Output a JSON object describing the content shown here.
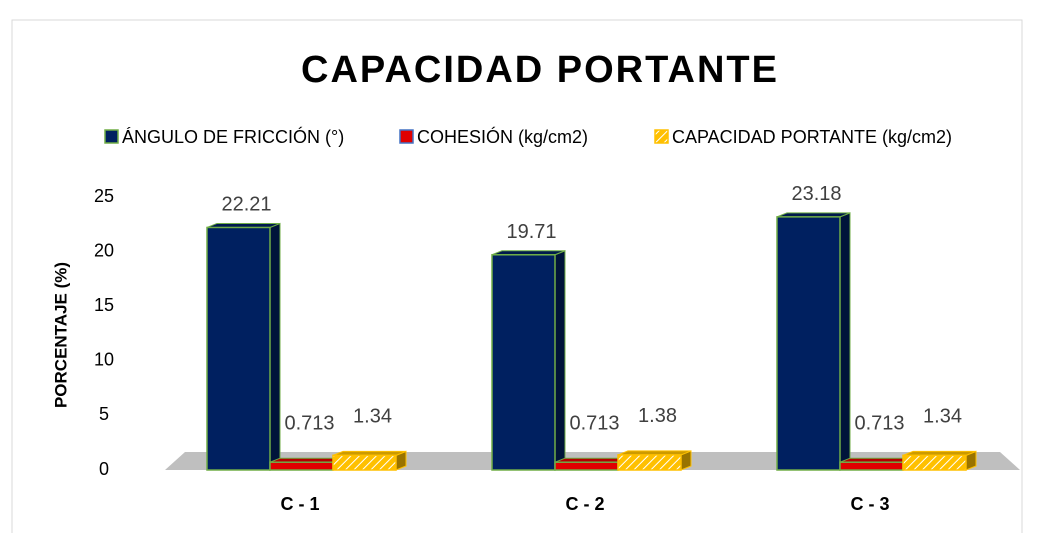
{
  "chart_data": {
    "type": "bar3d",
    "title": "CAPACIDAD PORTANTE",
    "ylabel": "PORCENTAJE (%)",
    "categories": [
      "C - 1",
      "C - 2",
      "C - 3"
    ],
    "series": [
      {
        "name": "ÁNGULO DE FRICCIÓN (°)",
        "color": "#002060",
        "values": [
          22.21,
          19.71,
          23.18
        ]
      },
      {
        "name": "COHESIÓN (kg/cm2)",
        "color": "#e00000",
        "values": [
          0.713,
          0.713,
          0.713
        ]
      },
      {
        "name": "CAPACIDAD PORTANTE (kg/cm2)",
        "color": "#ffc000",
        "hatch": true,
        "values": [
          1.34,
          1.38,
          1.34
        ]
      }
    ],
    "ylim": [
      0,
      25
    ],
    "yticks": [
      0,
      5,
      10,
      15,
      20,
      25
    ]
  }
}
